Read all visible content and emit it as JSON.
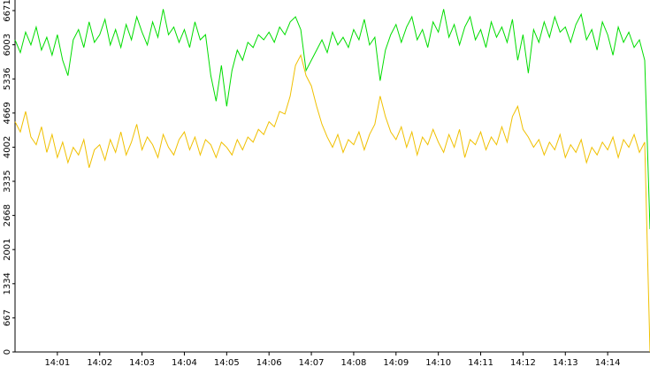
{
  "chart_data": {
    "type": "line",
    "x": [
      0,
      0.125,
      0.25,
      0.375,
      0.5,
      0.625,
      0.75,
      0.875,
      1,
      1.125,
      1.25,
      1.375,
      1.5,
      1.625,
      1.75,
      1.875,
      2,
      2.125,
      2.25,
      2.375,
      2.5,
      2.625,
      2.75,
      2.875,
      3,
      3.125,
      3.25,
      3.375,
      3.5,
      3.625,
      3.75,
      3.875,
      4,
      4.125,
      4.25,
      4.375,
      4.5,
      4.625,
      4.75,
      4.875,
      5,
      5.125,
      5.25,
      5.375,
      5.5,
      5.625,
      5.75,
      5.875,
      6,
      6.125,
      6.25,
      6.375,
      6.5,
      6.625,
      6.75,
      6.875,
      7,
      7.125,
      7.25,
      7.375,
      7.5,
      7.625,
      7.75,
      7.875,
      8,
      8.125,
      8.25,
      8.375,
      8.5,
      8.625,
      8.75,
      8.875,
      9,
      9.125,
      9.25,
      9.375,
      9.5,
      9.625,
      9.75,
      9.875,
      10,
      10.125,
      10.25,
      10.375,
      10.5,
      10.625,
      10.75,
      10.875,
      11,
      11.125,
      11.25,
      11.375,
      11.5,
      11.625,
      11.75,
      11.875,
      12,
      12.125,
      12.25,
      12.375,
      12.5,
      12.625,
      12.75,
      12.875,
      13,
      13.125,
      13.25,
      13.375,
      13.5,
      13.625,
      13.75,
      13.875,
      14,
      14.125,
      14.25,
      14.375,
      14.5,
      14.625,
      14.75,
      14.875,
      15
    ],
    "series": [
      {
        "color": "#00dd00",
        "values": [
          6100,
          5850,
          6250,
          6000,
          6350,
          5900,
          6150,
          5800,
          6200,
          5700,
          5400,
          6100,
          6300,
          5950,
          6450,
          6050,
          6200,
          6500,
          6000,
          6300,
          5950,
          6400,
          6100,
          6550,
          6250,
          6000,
          6450,
          6150,
          6700,
          6200,
          6350,
          6050,
          6300,
          5950,
          6450,
          6100,
          6200,
          5400,
          4900,
          5600,
          4800,
          5500,
          5900,
          5700,
          6050,
          5950,
          6200,
          6100,
          6250,
          6050,
          6350,
          6200,
          6450,
          6550,
          6300,
          5500,
          5700,
          5900,
          6100,
          5850,
          6250,
          6000,
          6150,
          5950,
          6300,
          6100,
          6500,
          6000,
          6150,
          5300,
          5900,
          6200,
          6400,
          6050,
          6350,
          6550,
          6100,
          6300,
          5950,
          6450,
          6250,
          6700,
          6150,
          6400,
          6000,
          6350,
          6550,
          6100,
          6300,
          5950,
          6450,
          6150,
          6350,
          6050,
          6500,
          5700,
          6200,
          5450,
          6300,
          6050,
          6450,
          6150,
          6550,
          6250,
          6350,
          6050,
          6400,
          6600,
          6100,
          6300,
          5900,
          6450,
          6200,
          5800,
          6350,
          6050,
          6250,
          5950,
          6100,
          5700,
          2400
        ]
      },
      {
        "color": "#f0c000",
        "values": [
          4500,
          4300,
          4700,
          4200,
          4050,
          4400,
          3900,
          4250,
          3800,
          4100,
          3700,
          4000,
          3850,
          4150,
          3600,
          3950,
          4050,
          3750,
          4150,
          3900,
          4300,
          3850,
          4100,
          4450,
          3950,
          4200,
          4050,
          3800,
          4250,
          4000,
          3850,
          4150,
          4300,
          3950,
          4200,
          3850,
          4150,
          4050,
          3800,
          4100,
          4000,
          3850,
          4150,
          3950,
          4200,
          4100,
          4350,
          4250,
          4500,
          4400,
          4700,
          4650,
          5000,
          5600,
          5800,
          5400,
          5200,
          4800,
          4450,
          4200,
          4000,
          4250,
          3900,
          4150,
          4050,
          4300,
          3950,
          4250,
          4450,
          5000,
          4600,
          4300,
          4150,
          4400,
          4000,
          4300,
          3850,
          4200,
          4050,
          4350,
          4100,
          3900,
          4250,
          4000,
          4350,
          3800,
          4150,
          4050,
          4300,
          3950,
          4200,
          4050,
          4400,
          4100,
          4600,
          4800,
          4350,
          4200,
          4000,
          4150,
          3850,
          4100,
          3950,
          4250,
          3800,
          4050,
          3900,
          4150,
          3700,
          4000,
          3850,
          4100,
          3950,
          4200,
          3800,
          4150,
          4000,
          4250,
          3900,
          4100,
          0
        ]
      }
    ],
    "xlim": [
      0,
      15
    ],
    "xticks": [
      {
        "value": 1,
        "label": "14:01"
      },
      {
        "value": 2,
        "label": "14:02"
      },
      {
        "value": 3,
        "label": "14:03"
      },
      {
        "value": 4,
        "label": "14:04"
      },
      {
        "value": 5,
        "label": "14:05"
      },
      {
        "value": 6,
        "label": "14:06"
      },
      {
        "value": 7,
        "label": "14:07"
      },
      {
        "value": 8,
        "label": "14:08"
      },
      {
        "value": 9,
        "label": "14:09"
      },
      {
        "value": 10,
        "label": "14:10"
      },
      {
        "value": 11,
        "label": "14:11"
      },
      {
        "value": 12,
        "label": "14:12"
      },
      {
        "value": 13,
        "label": "14:13"
      },
      {
        "value": 14,
        "label": "14:14"
      }
    ],
    "ylim": [
      0,
      6878
    ],
    "yticks": [
      0,
      667,
      1334,
      2001,
      2668,
      3335,
      4002,
      4669,
      5336,
      6003,
      6671
    ]
  }
}
